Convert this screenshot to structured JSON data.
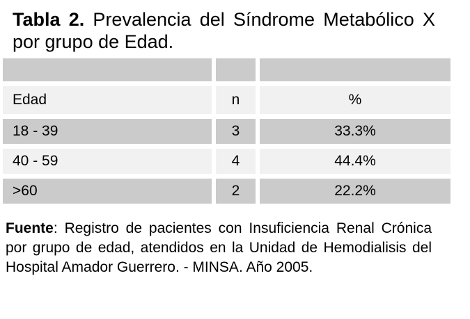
{
  "document": {
    "title": {
      "bold_label": "Tabla 2.",
      "rest": " Prevalencia del Síndrome Metabólico X por grupo de Edad."
    },
    "table": {
      "headers": [
        "Edad",
        "n",
        "%"
      ],
      "rows": [
        {
          "cells": [
            "18 - 39",
            "3",
            "33.3%"
          ]
        },
        {
          "cells": [
            "40 - 59",
            "4",
            "44.4%"
          ]
        },
        {
          "cells": [
            ">60",
            "2",
            "22.2%"
          ]
        }
      ]
    },
    "source": {
      "bold_label": "Fuente",
      "rest": ": Registro de pacientes con Insuficiencia Renal Crónica por grupo de edad, atendidos en la Unidad de Hemodialisis del Hospital Amador Guerrero. - MINSA. Año 2005."
    },
    "colors": {
      "row_dark": "#cbcbcb",
      "row_light": "#f1f1f1",
      "background": "#ffffff",
      "text": "#000000"
    }
  }
}
